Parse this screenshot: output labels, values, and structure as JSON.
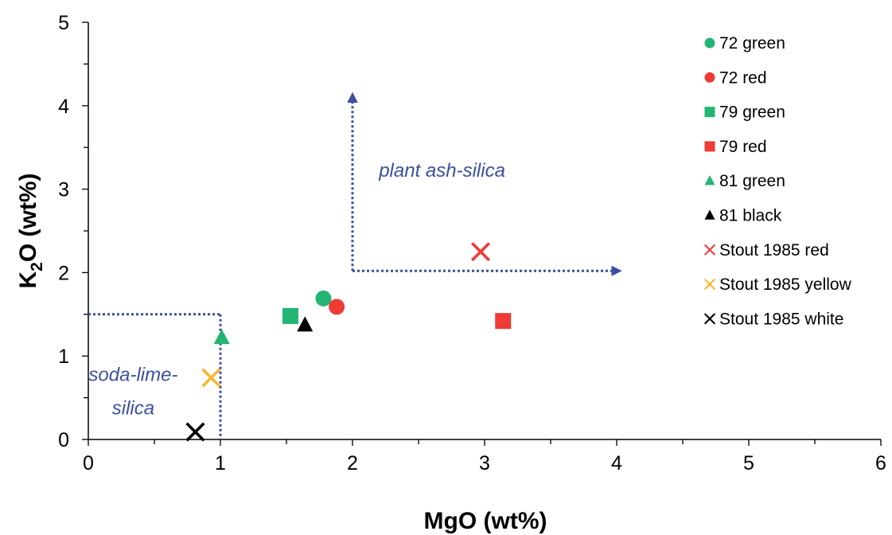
{
  "chart_data": {
    "type": "scatter",
    "title": "",
    "xlabel": "MgO (wt%)",
    "ylabel_main": "K",
    "ylabel_sub": "2",
    "ylabel_rest": "O (wt%)",
    "xlim": [
      0,
      6
    ],
    "ylim": [
      0,
      5
    ],
    "xticks": [
      "0",
      "1",
      "2",
      "3",
      "4",
      "5",
      "6"
    ],
    "yticks": [
      "0",
      "1",
      "2",
      "3",
      "4",
      "5"
    ],
    "grid": false,
    "legend_position": "top-right",
    "series": [
      {
        "name": "72 green",
        "marker": "circle",
        "color": "#22B573",
        "points": [
          [
            1.78,
            1.69
          ]
        ]
      },
      {
        "name": "72 red",
        "marker": "circle",
        "color": "#EF3B36",
        "points": [
          [
            1.88,
            1.59
          ]
        ]
      },
      {
        "name": "79 green",
        "marker": "square",
        "color": "#22B573",
        "points": [
          [
            1.53,
            1.48
          ]
        ]
      },
      {
        "name": "79 red",
        "marker": "square",
        "color": "#EF3B36",
        "points": [
          [
            3.14,
            1.42
          ]
        ]
      },
      {
        "name": "81 green",
        "marker": "triangle",
        "color": "#22B573",
        "points": [
          [
            1.01,
            1.22
          ]
        ]
      },
      {
        "name": "81 black",
        "marker": "triangle",
        "color": "#000000",
        "points": [
          [
            1.64,
            1.37
          ]
        ]
      },
      {
        "name": "Stout 1985 red",
        "marker": "x",
        "color": "#EF3B36",
        "points": [
          [
            2.97,
            2.25
          ]
        ]
      },
      {
        "name": "Stout 1985 yellow",
        "marker": "x",
        "color": "#F7B733",
        "points": [
          [
            0.93,
            0.74
          ]
        ]
      },
      {
        "name": "Stout 1985 white",
        "marker": "x",
        "color": "#000000",
        "points": [
          [
            0.81,
            0.09
          ]
        ]
      }
    ],
    "annotations": {
      "plant_ash": {
        "text": "plant ash-silica",
        "x": 2.2,
        "y": 3.15
      },
      "soda_lime_1": {
        "text": "soda-lime-",
        "x": 0.34,
        "y": 0.7
      },
      "soda_lime_2": {
        "text": "silica",
        "x": 0.34,
        "y": 0.3
      }
    },
    "guide_lines": {
      "color": "#3A4FA0",
      "plant_ash_vertical": [
        [
          2,
          2.02
        ],
        [
          2,
          4.1
        ]
      ],
      "plant_ash_horizontal": [
        [
          2,
          2.02
        ],
        [
          4,
          2.02
        ]
      ],
      "soda_lime_horizontal": [
        [
          0,
          1.5
        ],
        [
          1,
          1.5
        ]
      ],
      "soda_lime_vertical": [
        [
          1,
          1.5
        ],
        [
          1,
          0
        ]
      ]
    }
  }
}
